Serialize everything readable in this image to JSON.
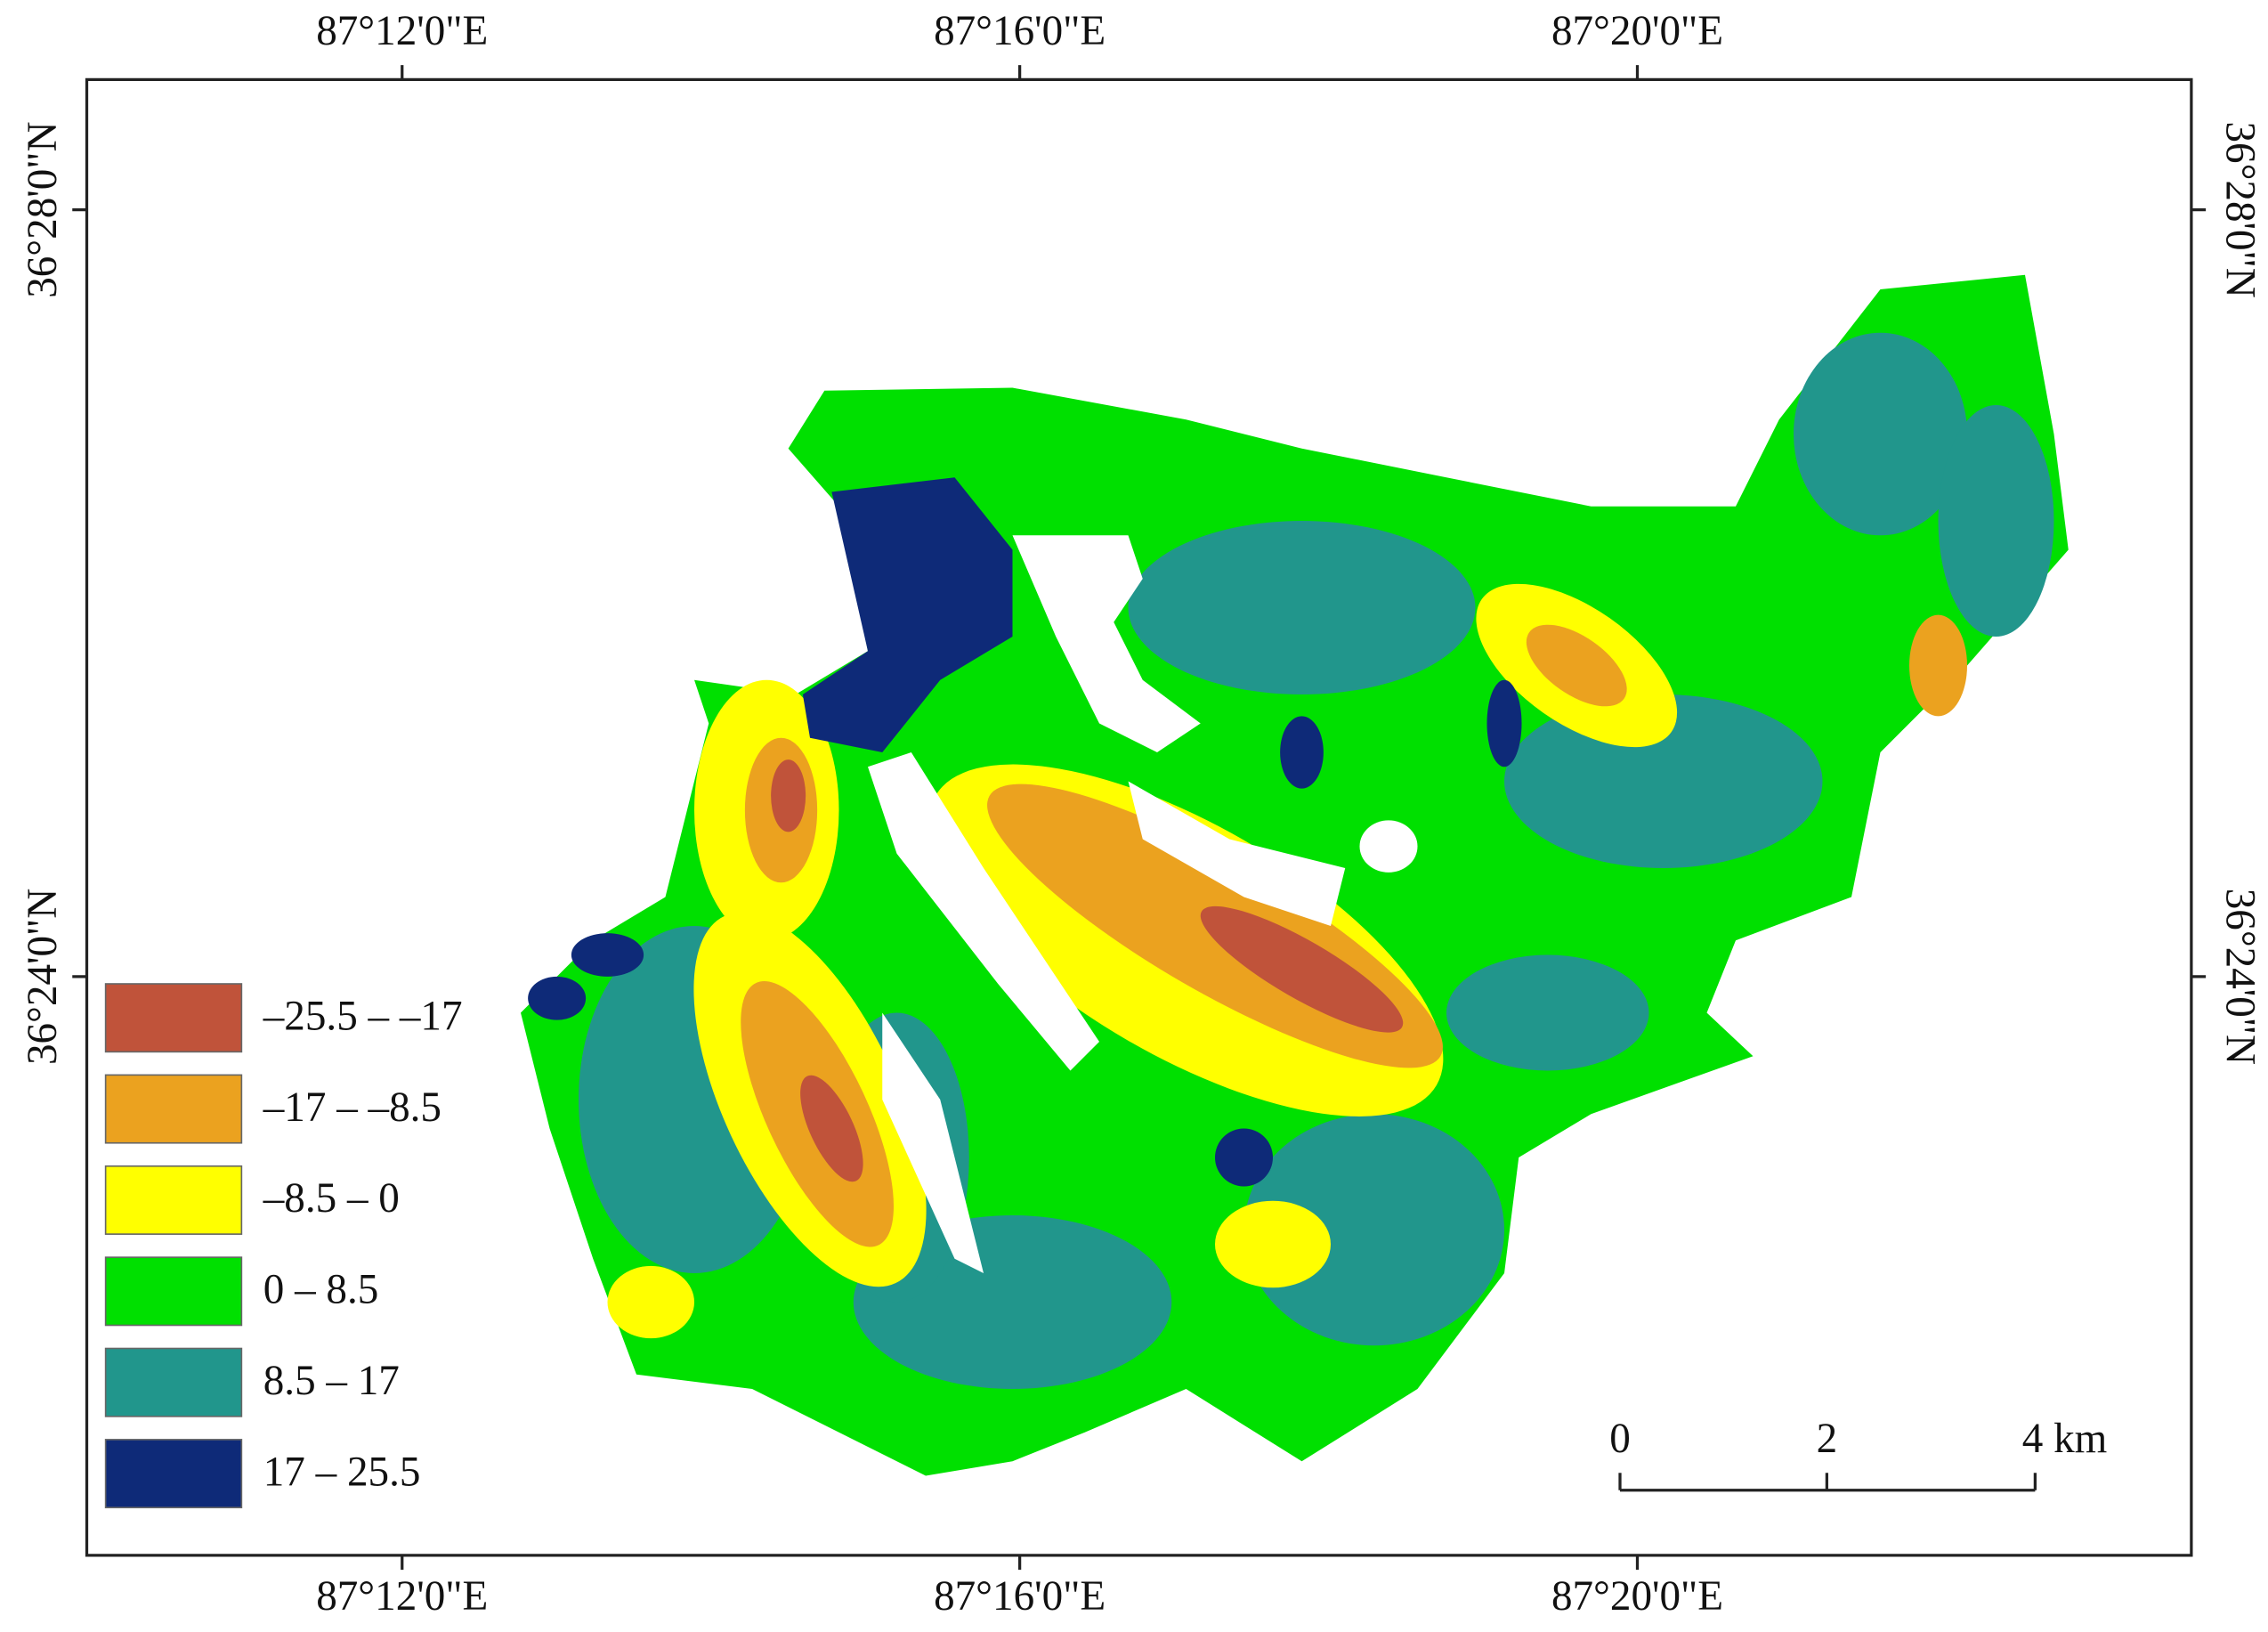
{
  "map": {
    "x_labels": [
      "87°12'0\"E",
      "87°16'0\"E",
      "87°20'0\"E"
    ],
    "y_labels": [
      "36°28'0\"N",
      "36°24'0\"N"
    ],
    "legend": [
      {
        "label": "–25.5 – –17",
        "color": "#c0533a"
      },
      {
        "label": "–17 – –8.5",
        "color": "#eba21f"
      },
      {
        "label": "–8.5 – 0",
        "color": "#ffff00"
      },
      {
        "label": "0 – 8.5",
        "color": "#00e000"
      },
      {
        "label": "8.5 – 17",
        "color": "#21968c"
      },
      {
        "label": "17 – 25.5",
        "color": "#0e2a78"
      }
    ],
    "scale_bar": {
      "labels": [
        "0",
        "2",
        "4 km"
      ]
    }
  }
}
